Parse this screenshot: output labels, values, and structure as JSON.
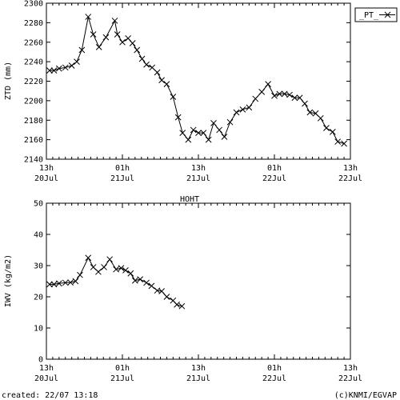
{
  "footer": {
    "created": "created: 22/07 13:18",
    "credit": "(c)KNMI/EGVAP"
  },
  "legend": {
    "label": "_PT_"
  },
  "x_ticks": [
    {
      "t": 0,
      "top": "13h",
      "bottom": "20Jul"
    },
    {
      "t": 12,
      "top": "01h",
      "bottom": "21Jul"
    },
    {
      "t": 24,
      "top": "13h",
      "bottom": "21Jul"
    },
    {
      "t": 36,
      "top": "01h",
      "bottom": "22Jul"
    },
    {
      "t": 48,
      "top": "13h",
      "bottom": "22Jul"
    }
  ],
  "chart_data": [
    {
      "type": "line",
      "ylabel": "ZTD (mm)",
      "ylim": [
        2140,
        2300
      ],
      "yticks": [
        2140,
        2160,
        2180,
        2200,
        2220,
        2240,
        2260,
        2280,
        2300
      ],
      "xlim_hours": [
        0,
        48
      ],
      "series": [
        {
          "name": "_PT_",
          "color": "#000000",
          "marker": "x",
          "x_hours": [
            0.5,
            1.2,
            2.0,
            3.0,
            4.0,
            4.8,
            5.6,
            6.6,
            7.4,
            8.3,
            9.4,
            10.8,
            11.2,
            12.0,
            12.9,
            13.6,
            14.3,
            15.1,
            15.8,
            16.7,
            17.5,
            18.2,
            19.0,
            20.0,
            20.8,
            21.5,
            22.4,
            23.2,
            24.0,
            24.8,
            25.6,
            26.4,
            27.3,
            28.1,
            29.0,
            30.0,
            31.0,
            32.0,
            33.0,
            34.0,
            35.0,
            36.0,
            36.8,
            37.6,
            38.4,
            39.2,
            40.0,
            40.8,
            41.6,
            42.5,
            43.3,
            44.2,
            45.2,
            46.0,
            47.0
          ],
          "y": [
            2231,
            2231,
            2233,
            2234,
            2236,
            2240,
            2252,
            2286,
            2268,
            2255,
            2265,
            2282,
            2268,
            2260,
            2264,
            2259,
            2252,
            2243,
            2237,
            2234,
            2229,
            2221,
            2217,
            2204,
            2183,
            2167,
            2160,
            2170,
            2167,
            2167,
            2160,
            2177,
            2170,
            2163,
            2178,
            2188,
            2191,
            2193,
            2202,
            2209,
            2217,
            2205,
            2207,
            2207,
            2206,
            2203,
            2203,
            2197,
            2188,
            2187,
            2182,
            2172,
            2168,
            2158,
            2156
          ]
        }
      ]
    },
    {
      "type": "line",
      "title": "HOHT",
      "ylabel": "IWV (kg/m2)",
      "ylim": [
        0,
        50
      ],
      "yticks": [
        0,
        10,
        20,
        30,
        40,
        50
      ],
      "xlim_hours": [
        0,
        48
      ],
      "series": [
        {
          "name": "_PT_",
          "color": "#000000",
          "marker": "x",
          "x_hours": [
            0.5,
            1.2,
            2.0,
            3.0,
            3.8,
            4.6,
            5.3,
            6.6,
            7.4,
            8.2,
            9.1,
            10.0,
            11.0,
            11.8,
            12.5,
            13.3,
            14.0,
            14.8,
            15.8,
            16.6,
            17.5,
            18.2,
            19.0,
            20.0,
            20.6,
            21.4
          ],
          "y": [
            24,
            24,
            24.3,
            24.5,
            24.6,
            25,
            27,
            32.5,
            29.5,
            28,
            29.5,
            32,
            28.8,
            29.2,
            28.5,
            27.5,
            25.2,
            25.6,
            24.5,
            23.5,
            22,
            21.8,
            20,
            18.8,
            17.5,
            17
          ]
        }
      ]
    }
  ]
}
